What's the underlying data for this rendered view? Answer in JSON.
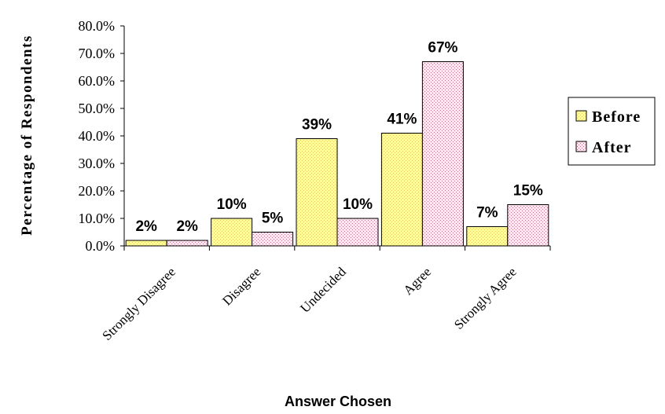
{
  "chart_data": {
    "type": "bar",
    "categories": [
      "Strongly Disagree",
      "Disagree",
      "Undecided",
      "Agree",
      "Strongly Agree"
    ],
    "series": [
      {
        "name": "Before",
        "values": [
          0.02,
          0.1,
          0.39,
          0.41,
          0.07
        ],
        "labels": [
          "2%",
          "10%",
          "39%",
          "41%",
          "7%"
        ],
        "color": "#ffff99",
        "dot_color": "#e8c85a"
      },
      {
        "name": "After",
        "values": [
          0.02,
          0.05,
          0.1,
          0.67,
          0.15
        ],
        "labels": [
          "2%",
          "5%",
          "10%",
          "67%",
          "15%"
        ],
        "color": "#ffe0ec",
        "dot_color": "#c07090"
      }
    ],
    "yticks": [
      "0.0%",
      "10.0%",
      "20.0%",
      "30.0%",
      "40.0%",
      "50.0%",
      "60.0%",
      "70.0%",
      "80.0%"
    ],
    "ylim": [
      0,
      0.8
    ],
    "xlabel": "Answer Chosen",
    "ylabel": "Percentage of Respondents",
    "legend_position": "right",
    "grid": false
  }
}
